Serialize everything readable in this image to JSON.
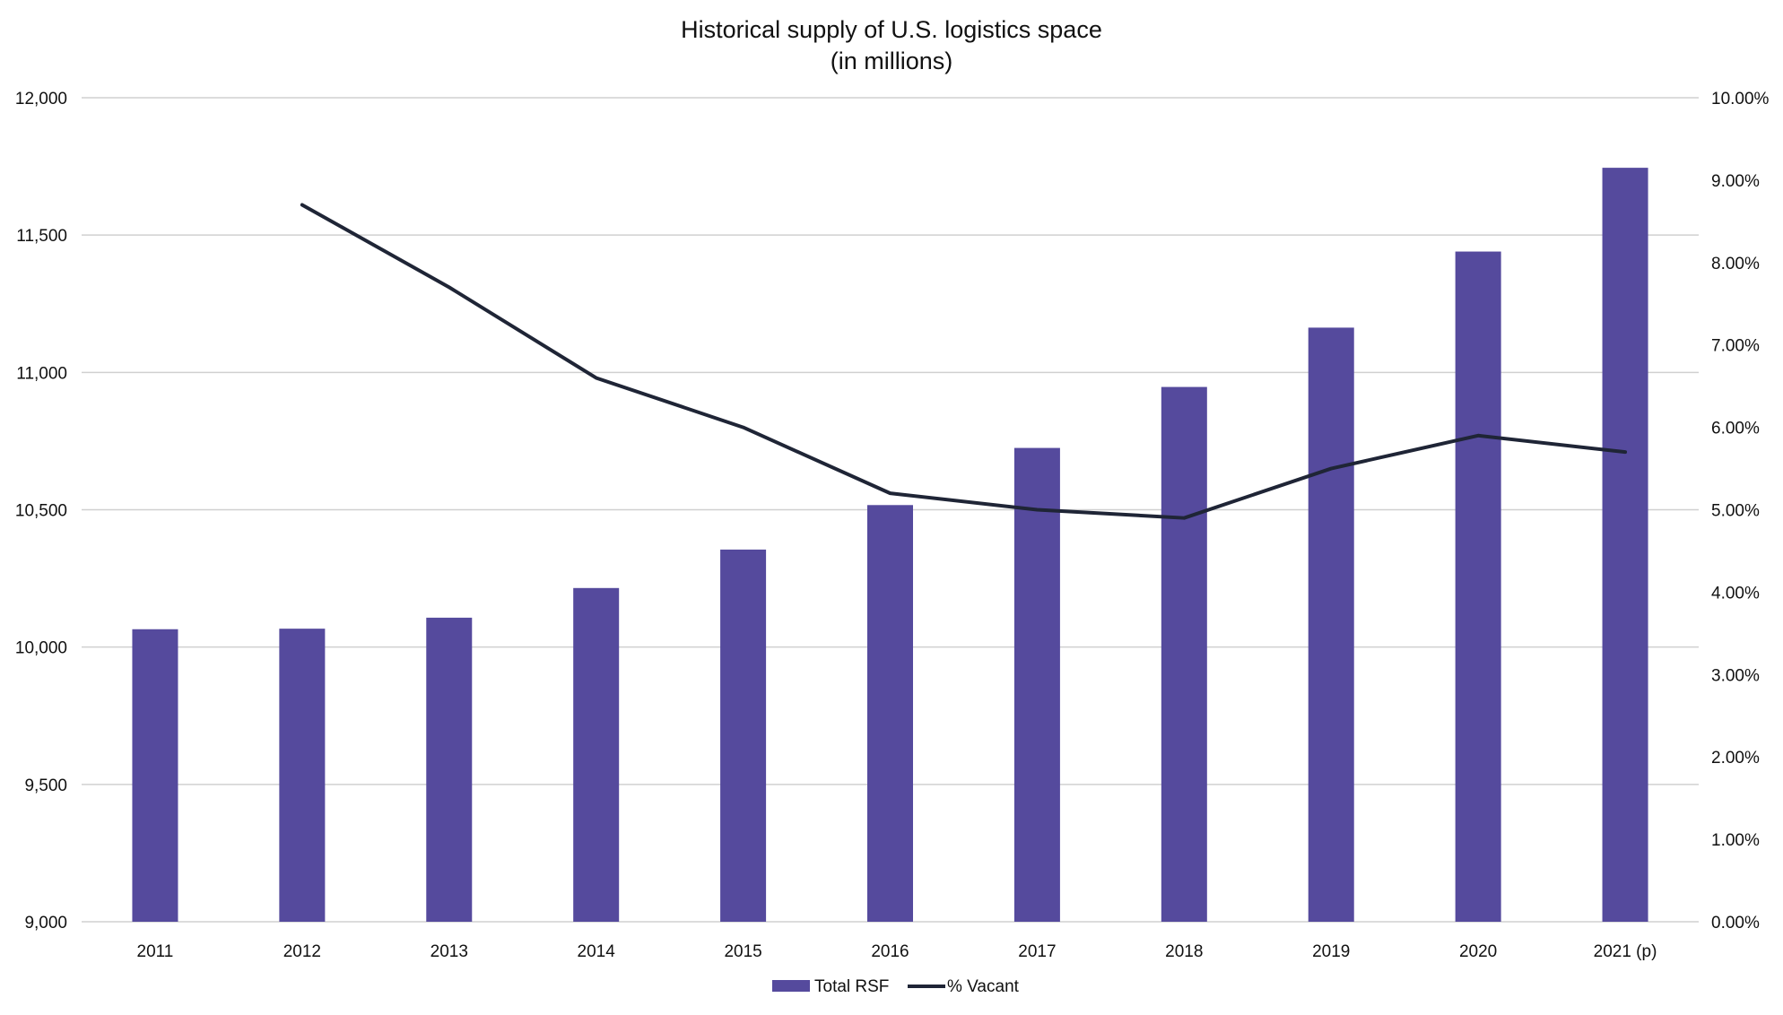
{
  "chart_data": {
    "type": "bar",
    "title": "Historical supply of U.S. logistics space",
    "subtitle": "(in millions)",
    "categories": [
      "2011",
      "2012",
      "2013",
      "2014",
      "2015",
      "2016",
      "2017",
      "2018",
      "2019",
      "2020",
      "2021 (p)"
    ],
    "series": [
      {
        "name": "Total RSF",
        "type": "bar",
        "axis": "left",
        "color": "#554a9d",
        "values": [
          10065,
          10067,
          10107,
          10215,
          10355,
          10517,
          10725,
          10947,
          11163,
          11440,
          11745
        ]
      },
      {
        "name": "% Vacant",
        "type": "line",
        "axis": "right",
        "color": "#1f2536",
        "values": [
          null,
          8.7,
          7.7,
          6.6,
          6.0,
          5.2,
          5.0,
          4.9,
          5.5,
          5.9,
          5.7
        ]
      }
    ],
    "y_left": {
      "ylim": [
        9000,
        12000
      ],
      "ticks": [
        9000,
        9500,
        10000,
        10500,
        11000,
        11500,
        12000
      ],
      "tick_labels": [
        "9,000",
        "9,500",
        "10,000",
        "10,500",
        "11,000",
        "11,500",
        "12,000"
      ]
    },
    "y_right": {
      "ylim": [
        0,
        10
      ],
      "ticks": [
        0,
        1,
        2,
        3,
        4,
        5,
        6,
        7,
        8,
        9,
        10
      ],
      "tick_labels": [
        "0.00%",
        "1.00%",
        "2.00%",
        "3.00%",
        "4.00%",
        "5.00%",
        "6.00%",
        "7.00%",
        "8.00%",
        "9.00%",
        "10.00%"
      ]
    },
    "grid": true,
    "legend_position": "bottom-center",
    "gridline_color": "#d0d0d0"
  }
}
